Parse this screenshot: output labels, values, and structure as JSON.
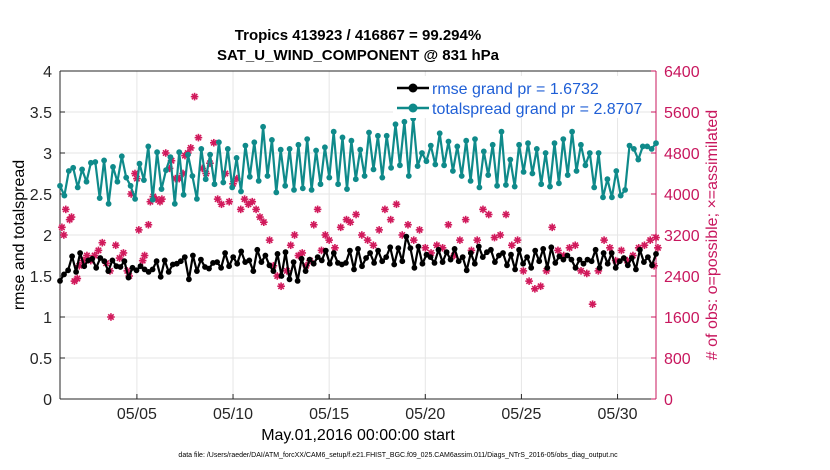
{
  "chart_data": {
    "type": "line",
    "title": "Tropics 413923 / 416867 = 99.294%",
    "subtitle": "SAT_U_WIND_COMPONENT @ 831 hPa",
    "xlabel": "May.01,2016 00:00:00 start",
    "ylabel": "rmse and totalspread",
    "y2label": "# of obs: o=possible; ×=assimilated",
    "footnote": "data file: /Users/raeder/DAI/ATM_forcXX/CAM6_setup/f.e21.FHIST_BGC.f09_025.CAM6assim.011/Diags_NTrS_2016-05/obs_diag_output.nc",
    "xlim": [
      1,
      32
    ],
    "ylim": [
      0,
      4
    ],
    "y2lim": [
      0,
      6400
    ],
    "x_tick_labels": [
      "05/05",
      "05/10",
      "05/15",
      "05/20",
      "05/25",
      "05/30"
    ],
    "x_ticks": [
      5,
      10,
      15,
      20,
      25,
      30
    ],
    "y_ticks": [
      "0",
      "0.5",
      "1",
      "1.5",
      "2",
      "2.5",
      "3",
      "3.5",
      "4"
    ],
    "y2_ticks": [
      "0",
      "800",
      "1600",
      "2400",
      "3200",
      "4000",
      "4800",
      "5600",
      "6400"
    ],
    "legend": [
      "rmse grand pr = 1.6732",
      "totalspread grand pr = 2.8707"
    ],
    "colors": {
      "rmse": "#000000",
      "spread": "#0f8a8a",
      "obs": "#d11a5c",
      "legend_text": "#1f5fd6",
      "right_axis": "#c8175e"
    },
    "series": [
      {
        "name": "rmse grand pr = 1.6732",
        "marker": "filled-circle",
        "values": [
          1.44,
          1.52,
          1.57,
          1.74,
          1.55,
          1.78,
          1.62,
          1.69,
          1.71,
          1.6,
          1.72,
          1.68,
          1.56,
          1.69,
          1.62,
          1.61,
          1.68,
          1.48,
          1.6,
          1.57,
          1.62,
          1.58,
          1.55,
          1.58,
          1.68,
          1.49,
          1.69,
          1.55,
          1.64,
          1.65,
          1.68,
          1.73,
          1.46,
          1.75,
          1.56,
          1.7,
          1.61,
          1.59,
          1.66,
          1.67,
          1.6,
          1.78,
          1.62,
          1.73,
          1.65,
          1.8,
          1.67,
          1.69,
          1.56,
          1.82,
          1.67,
          1.75,
          1.63,
          1.56,
          1.77,
          1.5,
          1.79,
          1.46,
          1.67,
          1.44,
          1.71,
          1.56,
          1.7,
          1.65,
          1.73,
          1.69,
          1.81,
          1.65,
          1.78,
          1.66,
          1.64,
          1.66,
          1.81,
          1.58,
          1.83,
          1.62,
          1.72,
          1.78,
          1.66,
          1.81,
          1.68,
          1.73,
          1.85,
          1.64,
          1.84,
          1.68,
          1.98,
          1.84,
          1.6,
          1.86,
          1.65,
          1.76,
          1.73,
          1.66,
          1.82,
          1.67,
          1.79,
          1.7,
          1.83,
          1.68,
          1.73,
          1.57,
          1.78,
          1.65,
          1.86,
          1.73,
          1.79,
          1.82,
          1.67,
          1.75,
          1.78,
          1.63,
          1.76,
          1.58,
          1.82,
          1.65,
          1.73,
          1.6,
          1.81,
          1.68,
          1.83,
          1.6,
          1.85,
          1.66,
          1.74,
          1.7,
          1.75,
          1.7,
          1.6,
          1.7,
          1.65,
          1.7,
          1.68,
          1.82,
          1.6,
          1.78,
          1.65,
          1.78,
          1.6,
          1.68,
          1.72,
          1.63,
          1.72,
          1.58,
          1.82,
          1.67,
          1.73,
          1.63,
          1.77
        ]
      },
      {
        "name": "totalspread grand pr = 2.8707",
        "marker": "filled-circle",
        "values": [
          2.6,
          2.48,
          2.78,
          2.82,
          2.58,
          2.8,
          2.65,
          2.88,
          2.89,
          2.45,
          2.91,
          2.38,
          2.83,
          2.65,
          2.96,
          2.7,
          2.6,
          2.44,
          2.87,
          2.67,
          3.08,
          2.43,
          3.01,
          2.56,
          2.79,
          2.95,
          2.38,
          3.01,
          2.49,
          2.98,
          2.72,
          2.44,
          3.05,
          2.68,
          2.98,
          2.62,
          3.13,
          2.64,
          3.05,
          2.58,
          2.94,
          2.53,
          3.09,
          2.71,
          3.13,
          2.66,
          3.32,
          2.72,
          3.16,
          2.52,
          3.04,
          2.6,
          3.05,
          2.55,
          3.1,
          2.57,
          3.17,
          2.55,
          3.03,
          2.62,
          3.07,
          2.7,
          3.26,
          2.62,
          3.19,
          2.56,
          3.15,
          2.68,
          3.04,
          2.72,
          3.25,
          2.8,
          3.21,
          2.7,
          3.21,
          2.82,
          3.35,
          2.85,
          3.38,
          2.72,
          3.42,
          2.84,
          3.0,
          2.9,
          3.09,
          2.86,
          3.24,
          2.85,
          3.14,
          2.78,
          3.08,
          2.72,
          3.15,
          2.66,
          3.17,
          2.58,
          3.02,
          2.73,
          3.1,
          2.6,
          3.26,
          2.61,
          2.92,
          2.59,
          3.1,
          2.77,
          3.12,
          2.75,
          3.05,
          2.62,
          3.0,
          2.59,
          3.12,
          2.63,
          3.17,
          2.73,
          3.26,
          2.78,
          3.1,
          2.85,
          3.0,
          2.58,
          3.0,
          2.46,
          2.68,
          2.46,
          2.78,
          2.48,
          2.55,
          3.09,
          3.05,
          2.92,
          3.08,
          3.08,
          3.05,
          3.12
        ]
      },
      {
        "name": "# of obs assimilated (right axis)",
        "marker": "star",
        "points": [
          [
            1.1,
            3350
          ],
          [
            1.2,
            3200
          ],
          [
            1.3,
            3700
          ],
          [
            1.5,
            3500
          ],
          [
            1.6,
            3550
          ],
          [
            1.75,
            2300
          ],
          [
            1.9,
            2350
          ],
          [
            2.0,
            2600
          ],
          [
            2.2,
            2700
          ],
          [
            2.4,
            2800
          ],
          [
            2.6,
            2700
          ],
          [
            2.8,
            2800
          ],
          [
            3.0,
            2900
          ],
          [
            3.2,
            3050
          ],
          [
            3.4,
            2650
          ],
          [
            3.6,
            2500
          ],
          [
            3.65,
            1600
          ],
          [
            3.9,
            3000
          ],
          [
            4.1,
            2750
          ],
          [
            4.3,
            2850
          ],
          [
            4.5,
            2500
          ],
          [
            4.6,
            2400
          ],
          [
            4.7,
            4000
          ],
          [
            4.9,
            4400
          ],
          [
            5.0,
            4300
          ],
          [
            5.1,
            3300
          ],
          [
            5.3,
            2700
          ],
          [
            5.4,
            2800
          ],
          [
            5.6,
            3400
          ],
          [
            5.7,
            3850
          ],
          [
            5.85,
            3950
          ],
          [
            6.0,
            3900
          ],
          [
            6.2,
            3850
          ],
          [
            6.3,
            3900
          ],
          [
            6.5,
            4800
          ],
          [
            6.7,
            4500
          ],
          [
            6.8,
            4650
          ],
          [
            7.0,
            4300
          ],
          [
            7.2,
            4300
          ],
          [
            7.4,
            4400
          ],
          [
            7.5,
            4750
          ],
          [
            7.65,
            4800
          ],
          [
            7.8,
            4900
          ],
          [
            8.0,
            5900
          ],
          [
            8.2,
            5100
          ],
          [
            8.4,
            4500
          ],
          [
            8.6,
            4400
          ],
          [
            8.8,
            4600
          ],
          [
            9.0,
            5000
          ],
          [
            9.2,
            3900
          ],
          [
            9.4,
            3800
          ],
          [
            9.6,
            4400
          ],
          [
            9.8,
            3850
          ],
          [
            10.0,
            4200
          ],
          [
            10.2,
            4300
          ],
          [
            10.4,
            3700
          ],
          [
            10.6,
            3900
          ],
          [
            10.8,
            3800
          ],
          [
            11.0,
            3850
          ],
          [
            11.2,
            3700
          ],
          [
            11.4,
            3550
          ],
          [
            11.6,
            3450
          ],
          [
            11.9,
            3100
          ],
          [
            12.1,
            2600
          ],
          [
            12.3,
            2400
          ],
          [
            12.5,
            2200
          ],
          [
            12.8,
            2500
          ],
          [
            13.0,
            3000
          ],
          [
            13.2,
            3200
          ],
          [
            13.4,
            2800
          ],
          [
            13.6,
            2850
          ],
          [
            13.8,
            2600
          ],
          [
            14.0,
            2700
          ],
          [
            14.2,
            3400
          ],
          [
            14.4,
            3700
          ],
          [
            14.6,
            2900
          ],
          [
            14.8,
            3200
          ],
          [
            15.0,
            3100
          ],
          [
            15.3,
            2950
          ],
          [
            15.6,
            3350
          ],
          [
            15.9,
            3500
          ],
          [
            16.1,
            3450
          ],
          [
            16.4,
            3600
          ],
          [
            16.7,
            3200
          ],
          [
            17.0,
            3100
          ],
          [
            17.3,
            3000
          ],
          [
            17.6,
            3300
          ],
          [
            17.9,
            3700
          ],
          [
            18.2,
            3500
          ],
          [
            18.5,
            3800
          ],
          [
            18.8,
            3200
          ],
          [
            19.1,
            3400
          ],
          [
            19.4,
            3100
          ],
          [
            19.7,
            3300
          ],
          [
            20.0,
            2950
          ],
          [
            20.3,
            2850
          ],
          [
            20.6,
            3000
          ],
          [
            20.9,
            2950
          ],
          [
            21.2,
            3400
          ],
          [
            21.5,
            2800
          ],
          [
            21.8,
            3100
          ],
          [
            22.1,
            3500
          ],
          [
            22.4,
            2900
          ],
          [
            22.7,
            3100
          ],
          [
            23.0,
            3700
          ],
          [
            23.3,
            3600
          ],
          [
            23.6,
            3150
          ],
          [
            23.9,
            3200
          ],
          [
            24.2,
            3600
          ],
          [
            24.5,
            3000
          ],
          [
            24.8,
            3100
          ],
          [
            25.1,
            2500
          ],
          [
            25.4,
            2300
          ],
          [
            25.7,
            2150
          ],
          [
            26.0,
            2200
          ],
          [
            26.3,
            2500
          ],
          [
            26.6,
            3350
          ],
          [
            26.9,
            2900
          ],
          [
            27.2,
            2800
          ],
          [
            27.5,
            2950
          ],
          [
            27.8,
            3000
          ],
          [
            28.1,
            2500
          ],
          [
            28.4,
            2450
          ],
          [
            28.7,
            1850
          ],
          [
            29.0,
            2500
          ],
          [
            29.3,
            3100
          ],
          [
            29.6,
            2950
          ],
          [
            29.9,
            2700
          ],
          [
            30.2,
            2900
          ],
          [
            30.5,
            2700
          ],
          [
            30.8,
            2800
          ],
          [
            31.1,
            2950
          ],
          [
            31.4,
            3000
          ],
          [
            31.7,
            3100
          ],
          [
            31.9,
            2600
          ],
          [
            32.0,
            3150
          ],
          [
            32.1,
            2950
          ]
        ]
      }
    ]
  }
}
